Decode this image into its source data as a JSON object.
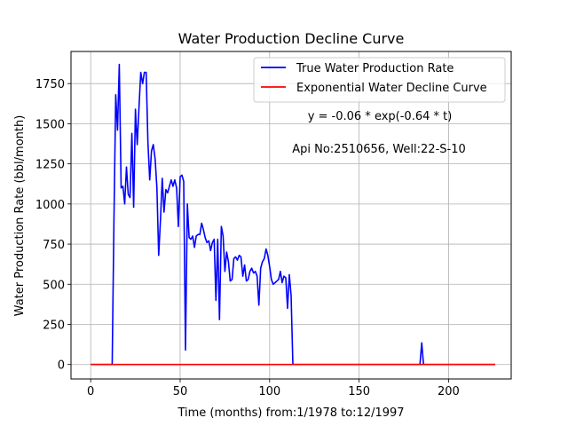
{
  "chart_data": {
    "type": "line",
    "title": "Water Production Decline Curve",
    "xlabel": "Time (months) from:1/1978 to:12/1997",
    "ylabel": "Water Production Rate (bbl/month)",
    "xlim": [
      -11,
      235
    ],
    "ylim": [
      -90,
      1950
    ],
    "xticks": [
      0,
      50,
      100,
      150,
      200
    ],
    "xtick_labels": [
      "0",
      "50",
      "100",
      "150",
      "200"
    ],
    "yticks": [
      0,
      250,
      500,
      750,
      1000,
      1250,
      1500,
      1750
    ],
    "ytick_labels": [
      "0",
      "250",
      "500",
      "750",
      "1000",
      "1250",
      "1500",
      "1750"
    ],
    "grid": true,
    "legend_position": "top-right",
    "annotations": [
      "y = -0.06 * exp(-0.64 * t)",
      "Api No:2510656, Well:22-S-10"
    ],
    "series": [
      {
        "name": "True Water Production Rate",
        "color": "#0000ff",
        "points": [
          [
            0,
            0
          ],
          [
            12,
            0
          ],
          [
            13,
            900
          ],
          [
            14,
            1680
          ],
          [
            15,
            1460
          ],
          [
            16,
            1870
          ],
          [
            17,
            1100
          ],
          [
            18,
            1110
          ],
          [
            19,
            1000
          ],
          [
            20,
            1230
          ],
          [
            21,
            1060
          ],
          [
            22,
            1040
          ],
          [
            23,
            1440
          ],
          [
            24,
            980
          ],
          [
            25,
            1590
          ],
          [
            26,
            1370
          ],
          [
            27,
            1600
          ],
          [
            28,
            1820
          ],
          [
            29,
            1750
          ],
          [
            30,
            1820
          ],
          [
            31,
            1820
          ],
          [
            32,
            1380
          ],
          [
            33,
            1150
          ],
          [
            34,
            1330
          ],
          [
            35,
            1370
          ],
          [
            36,
            1280
          ],
          [
            37,
            1100
          ],
          [
            38,
            680
          ],
          [
            39,
            900
          ],
          [
            40,
            1160
          ],
          [
            41,
            950
          ],
          [
            42,
            1090
          ],
          [
            43,
            1070
          ],
          [
            44,
            1110
          ],
          [
            45,
            1150
          ],
          [
            46,
            1110
          ],
          [
            47,
            1150
          ],
          [
            48,
            1100
          ],
          [
            49,
            860
          ],
          [
            50,
            1170
          ],
          [
            51,
            1180
          ],
          [
            52,
            1140
          ],
          [
            53,
            90
          ],
          [
            54,
            1000
          ],
          [
            55,
            790
          ],
          [
            56,
            780
          ],
          [
            57,
            800
          ],
          [
            58,
            730
          ],
          [
            59,
            800
          ],
          [
            60,
            810
          ],
          [
            61,
            810
          ],
          [
            62,
            880
          ],
          [
            63,
            840
          ],
          [
            64,
            790
          ],
          [
            65,
            760
          ],
          [
            66,
            770
          ],
          [
            67,
            710
          ],
          [
            68,
            760
          ],
          [
            69,
            780
          ],
          [
            70,
            400
          ],
          [
            71,
            780
          ],
          [
            72,
            280
          ],
          [
            73,
            860
          ],
          [
            74,
            800
          ],
          [
            75,
            580
          ],
          [
            76,
            700
          ],
          [
            77,
            640
          ],
          [
            78,
            520
          ],
          [
            79,
            530
          ],
          [
            80,
            660
          ],
          [
            81,
            670
          ],
          [
            82,
            650
          ],
          [
            83,
            680
          ],
          [
            84,
            670
          ],
          [
            85,
            550
          ],
          [
            86,
            620
          ],
          [
            87,
            520
          ],
          [
            88,
            530
          ],
          [
            89,
            580
          ],
          [
            90,
            600
          ],
          [
            91,
            570
          ],
          [
            92,
            580
          ],
          [
            93,
            550
          ],
          [
            94,
            370
          ],
          [
            95,
            600
          ],
          [
            96,
            640
          ],
          [
            97,
            660
          ],
          [
            98,
            720
          ],
          [
            99,
            680
          ],
          [
            100,
            610
          ],
          [
            101,
            530
          ],
          [
            102,
            500
          ],
          [
            103,
            510
          ],
          [
            104,
            520
          ],
          [
            105,
            530
          ],
          [
            106,
            580
          ],
          [
            107,
            510
          ],
          [
            108,
            550
          ],
          [
            109,
            540
          ],
          [
            110,
            350
          ],
          [
            111,
            560
          ],
          [
            112,
            430
          ],
          [
            113,
            0
          ],
          [
            184,
            0
          ],
          [
            185,
            135
          ],
          [
            186,
            0
          ],
          [
            226,
            0
          ]
        ]
      },
      {
        "name": "Exponential Water Decline Curve",
        "color": "#ff0000",
        "points": [
          [
            0,
            0
          ],
          [
            226,
            0
          ]
        ]
      }
    ]
  }
}
